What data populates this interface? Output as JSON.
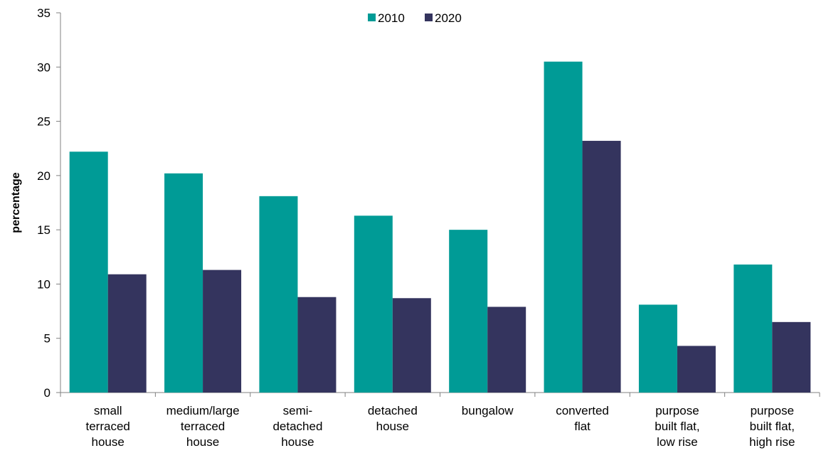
{
  "chart_data": {
    "type": "bar",
    "title": "",
    "xlabel": "",
    "ylabel": "percentage",
    "ylim": [
      0,
      35
    ],
    "yticks": [
      0,
      5,
      10,
      15,
      20,
      25,
      30,
      35
    ],
    "grid": false,
    "legend_position": "top-center",
    "categories": [
      [
        "small",
        "terraced",
        "house"
      ],
      [
        "medium/large",
        "terraced",
        "house"
      ],
      [
        "semi-",
        "detached",
        "house"
      ],
      [
        "detached",
        "house"
      ],
      [
        "bungalow"
      ],
      [
        "converted",
        "flat"
      ],
      [
        "purpose",
        "built flat,",
        "low rise"
      ],
      [
        "purpose",
        "built flat,",
        "high rise"
      ]
    ],
    "series": [
      {
        "name": "2010",
        "color": "#009B96",
        "values": [
          22.2,
          20.2,
          18.1,
          16.3,
          15.0,
          30.5,
          8.1,
          11.8
        ]
      },
      {
        "name": "2020",
        "color": "#34345E",
        "values": [
          10.9,
          11.3,
          8.8,
          8.7,
          7.9,
          23.2,
          4.3,
          6.5
        ]
      }
    ]
  }
}
